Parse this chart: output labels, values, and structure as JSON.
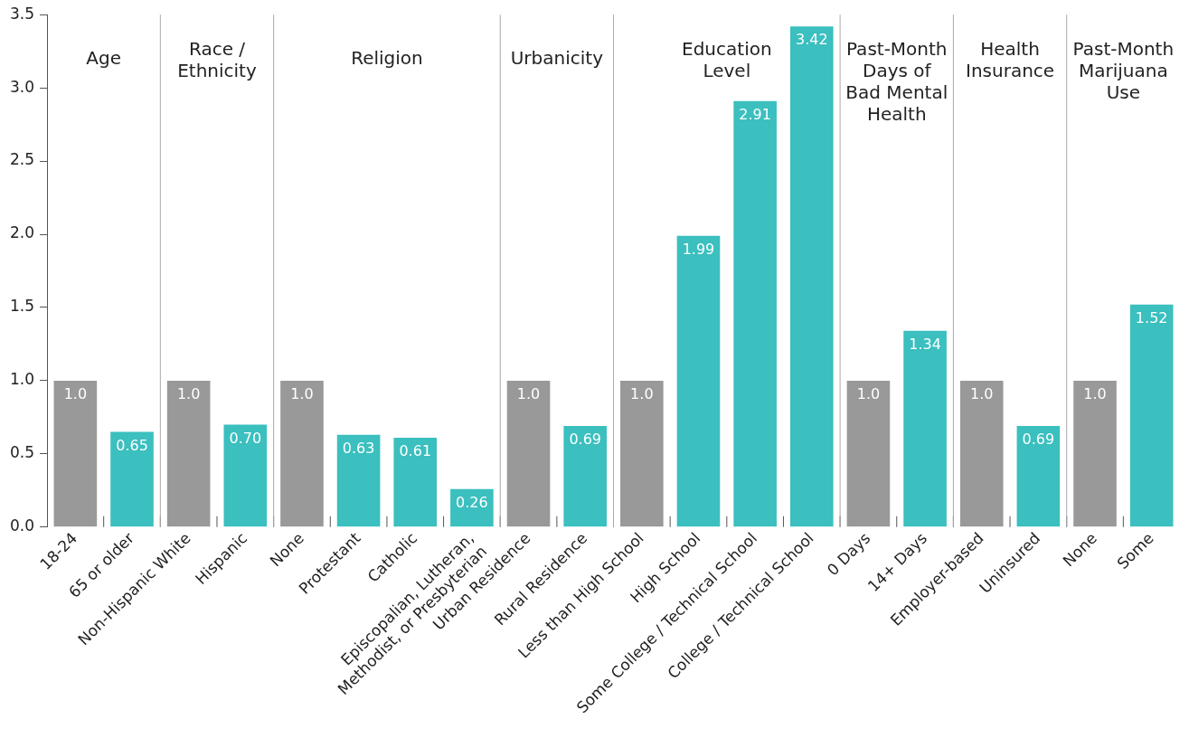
{
  "chart_data": {
    "type": "bar",
    "categories": [
      "18-24",
      "65 or older",
      "Non-Hispanic White",
      "Hispanic",
      "None",
      "Protestant",
      "Catholic",
      "Episcopalian, Lutheran, Methodist, or Presbyterian",
      "Urban Residence",
      "Rural Residence",
      "Less than High School",
      "High School",
      "Some College / Technical School",
      "College / Technical School",
      "0 Days",
      "14+ Days",
      "Employer-based",
      "Uninsured",
      "None",
      "Some"
    ],
    "values": [
      1.0,
      0.65,
      1.0,
      0.7,
      1.0,
      0.63,
      0.61,
      0.26,
      1.0,
      0.69,
      1.0,
      1.99,
      2.91,
      3.42,
      1.0,
      1.34,
      1.0,
      0.69,
      1.0,
      1.52
    ],
    "value_labels": [
      "1.0",
      "0.65",
      "1.0",
      "0.70",
      "1.0",
      "0.63",
      "0.61",
      "0.26",
      "1.0",
      "0.69",
      "1.0",
      "1.99",
      "2.91",
      "3.42",
      "1.0",
      "1.34",
      "1.0",
      "0.69",
      "1.0",
      "1.52"
    ],
    "colors": [
      "#999999",
      "#3bbfbf",
      "#999999",
      "#3bbfbf",
      "#999999",
      "#3bbfbf",
      "#3bbfbf",
      "#3bbfbf",
      "#999999",
      "#3bbfbf",
      "#999999",
      "#3bbfbf",
      "#3bbfbf",
      "#3bbfbf",
      "#999999",
      "#3bbfbf",
      "#999999",
      "#3bbfbf",
      "#999999",
      "#3bbfbf"
    ],
    "ylim": [
      0,
      3.5
    ],
    "yticks": [
      {
        "value": 0,
        "label": "0.0"
      },
      0.5,
      {
        "value": 1,
        "label": "1.0"
      },
      1.5,
      {
        "value": 2,
        "label": "2.0"
      },
      2.5,
      {
        "value": 3,
        "label": "3.0"
      },
      3.5
    ],
    "annotations": [
      "Age",
      "Race / Ethnicity",
      "Religion",
      "Urbanicity",
      "Education Level",
      "Past-Month Days of Bad Mental Health",
      "Health Insurance",
      "Past-Month Marijuana Use"
    ],
    "grid": false,
    "legend": false
  }
}
